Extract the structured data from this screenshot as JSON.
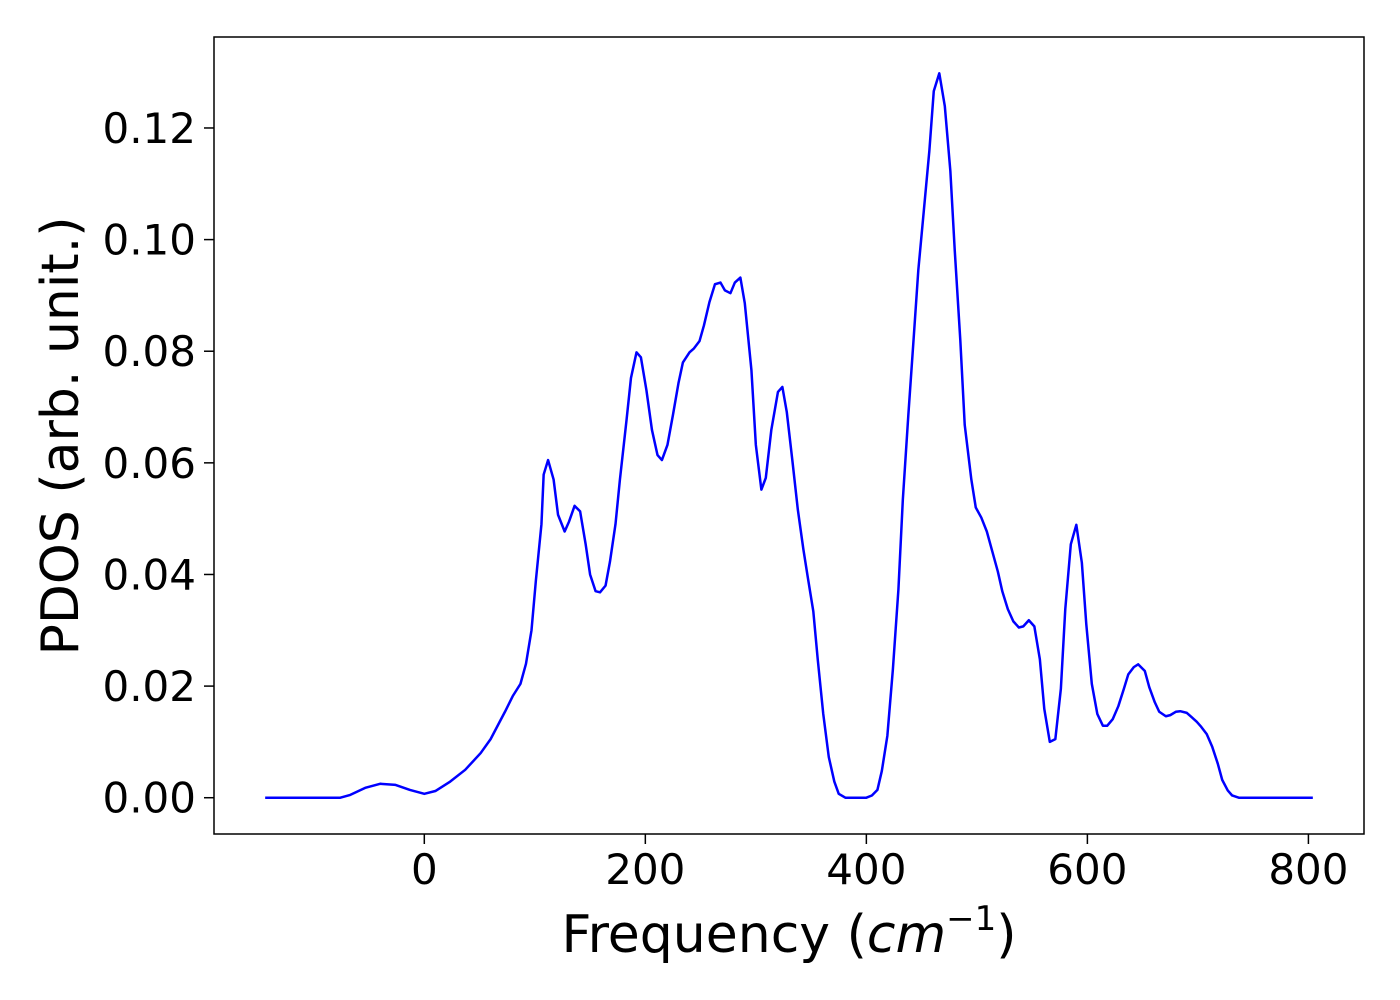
{
  "chart_data": {
    "type": "line",
    "x_label": [
      "Frequency (",
      "cm",
      "−1",
      ")"
    ],
    "y_label": "PDOS (arb. unit.)",
    "color": "#0000ff",
    "xlim": [
      -190.3,
      850.3
    ],
    "ylim": [
      -0.0065,
      0.1363
    ],
    "xticks": [
      0,
      200,
      400,
      600,
      800
    ],
    "yticks": [
      {
        "value": 0,
        "label": "0.00"
      },
      {
        "value": 0.02,
        "label": "0.02"
      },
      {
        "value": 0.04,
        "label": "0.04"
      },
      {
        "value": 0.06,
        "label": "0.06"
      },
      {
        "value": 0.08,
        "label": "0.08"
      },
      {
        "value": 0.1,
        "label": "0.10"
      },
      {
        "value": 0.12,
        "label": "0.12"
      }
    ],
    "x": [
      -144,
      -76,
      -67,
      -53,
      -40,
      -26,
      -13,
      0,
      10,
      23.5,
      37,
      51,
      60,
      69,
      73,
      80,
      87,
      92,
      97,
      101,
      106,
      108,
      112,
      117,
      121,
      127,
      131,
      136,
      141,
      146,
      150,
      155,
      159,
      164,
      168,
      173,
      177,
      183,
      187,
      192,
      196,
      201,
      206,
      211,
      215,
      220,
      225,
      230,
      234,
      240,
      244,
      249,
      253,
      258,
      263,
      268,
      272,
      277,
      281,
      286,
      290,
      296,
      300,
      305,
      309,
      314,
      320,
      324,
      328,
      333,
      338,
      343,
      347,
      352,
      356,
      361,
      366,
      371,
      375,
      381,
      400,
      405,
      410,
      414,
      419,
      424,
      429,
      433,
      438,
      443,
      447,
      452,
      457,
      461,
      466,
      471,
      476,
      480,
      485,
      489,
      495,
      499,
      504,
      509,
      514,
      519,
      523,
      528,
      533,
      538,
      542,
      547,
      552,
      557,
      561,
      566,
      571,
      576,
      580,
      585,
      590,
      595,
      599,
      604,
      609,
      614,
      618,
      623,
      628,
      633,
      637,
      642,
      646,
      652,
      656,
      661,
      665,
      671,
      675,
      680,
      684,
      690,
      694,
      699,
      703,
      708,
      713,
      718,
      722,
      727,
      731,
      737,
      804
    ],
    "values": [
      0,
      0,
      0.0005,
      0.0018,
      0.0025,
      0.0023,
      0.0014,
      0.0007,
      0.0012,
      0.0029,
      0.005,
      0.008,
      0.0105,
      0.0139,
      0.0154,
      0.0182,
      0.0204,
      0.024,
      0.03,
      0.039,
      0.049,
      0.0579,
      0.0605,
      0.057,
      0.0507,
      0.0477,
      0.0495,
      0.0523,
      0.0513,
      0.0454,
      0.04,
      0.037,
      0.0368,
      0.038,
      0.0423,
      0.049,
      0.057,
      0.0677,
      0.0752,
      0.0798,
      0.0789,
      0.073,
      0.0659,
      0.0614,
      0.0605,
      0.0632,
      0.0686,
      0.0743,
      0.078,
      0.0798,
      0.0805,
      0.0818,
      0.0846,
      0.0888,
      0.092,
      0.0923,
      0.0909,
      0.0904,
      0.0923,
      0.0932,
      0.0886,
      0.0766,
      0.0632,
      0.0552,
      0.0573,
      0.0659,
      0.0727,
      0.0736,
      0.0691,
      0.0605,
      0.0516,
      0.0445,
      0.0395,
      0.0334,
      0.0248,
      0.015,
      0.0073,
      0.0029,
      0.0007,
      0,
      0,
      0.0004,
      0.0014,
      0.0048,
      0.0111,
      0.023,
      0.0373,
      0.0534,
      0.0686,
      0.0829,
      0.0945,
      0.1052,
      0.1159,
      0.1266,
      0.1298,
      0.1239,
      0.1123,
      0.098,
      0.082,
      0.0668,
      0.057,
      0.052,
      0.0502,
      0.0477,
      0.0441,
      0.0405,
      0.037,
      0.0338,
      0.0316,
      0.0305,
      0.0307,
      0.0318,
      0.0307,
      0.0248,
      0.0159,
      0.01,
      0.0105,
      0.0195,
      0.0338,
      0.0454,
      0.0489,
      0.0421,
      0.0311,
      0.0204,
      0.015,
      0.0129,
      0.0129,
      0.0141,
      0.0164,
      0.0195,
      0.0221,
      0.0234,
      0.0239,
      0.0227,
      0.0198,
      0.0171,
      0.0154,
      0.0146,
      0.0148,
      0.0154,
      0.0155,
      0.0152,
      0.0145,
      0.0136,
      0.0127,
      0.0114,
      0.0091,
      0.0061,
      0.0032,
      0.0013,
      0.0004,
      0,
      0
    ]
  }
}
